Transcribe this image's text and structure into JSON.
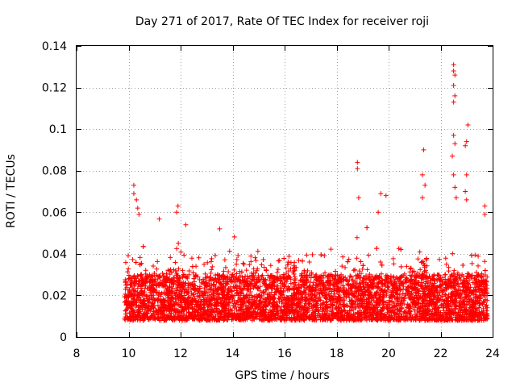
{
  "chart_data": {
    "type": "scatter",
    "title": "Day 271 of 2017, Rate Of TEC Index for receiver roji",
    "xlabel": "GPS time / hours",
    "ylabel": "ROTI / TECUs",
    "xlim": [
      8,
      24
    ],
    "ylim": [
      0,
      0.14
    ],
    "xticks": [
      8,
      10,
      12,
      14,
      16,
      18,
      20,
      22,
      24
    ],
    "xtick_labels": [
      "8",
      "10",
      "12",
      "14",
      "16",
      "18",
      "20",
      "22",
      "24"
    ],
    "yticks": [
      0,
      0.02,
      0.04,
      0.06,
      0.08,
      0.1,
      0.12,
      0.14
    ],
    "ytick_labels": [
      "0",
      "0.02",
      "0.04",
      "0.06",
      "0.08",
      "0.1",
      "0.12",
      "0.14"
    ],
    "grid": true,
    "marker": "+",
    "color": "#ff0000",
    "series": [
      {
        "name": "ROTI",
        "x_range": [
          9.85,
          23.8
        ],
        "typical_range": [
          0.008,
          0.03
        ],
        "notable_points": [
          {
            "x": 10.2,
            "y": 0.073
          },
          {
            "x": 10.2,
            "y": 0.069
          },
          {
            "x": 10.3,
            "y": 0.066
          },
          {
            "x": 10.35,
            "y": 0.062
          },
          {
            "x": 10.4,
            "y": 0.059
          },
          {
            "x": 11.9,
            "y": 0.063
          },
          {
            "x": 11.85,
            "y": 0.06
          },
          {
            "x": 12.2,
            "y": 0.054
          },
          {
            "x": 13.5,
            "y": 0.052
          },
          {
            "x": 18.8,
            "y": 0.084
          },
          {
            "x": 18.8,
            "y": 0.081
          },
          {
            "x": 18.85,
            "y": 0.067
          },
          {
            "x": 19.7,
            "y": 0.069
          },
          {
            "x": 19.9,
            "y": 0.068
          },
          {
            "x": 19.6,
            "y": 0.06
          },
          {
            "x": 21.35,
            "y": 0.09
          },
          {
            "x": 21.3,
            "y": 0.078
          },
          {
            "x": 21.4,
            "y": 0.073
          },
          {
            "x": 21.3,
            "y": 0.067
          },
          {
            "x": 22.5,
            "y": 0.131
          },
          {
            "x": 22.5,
            "y": 0.128
          },
          {
            "x": 22.55,
            "y": 0.126
          },
          {
            "x": 22.5,
            "y": 0.121
          },
          {
            "x": 22.55,
            "y": 0.116
          },
          {
            "x": 22.5,
            "y": 0.113
          },
          {
            "x": 22.5,
            "y": 0.097
          },
          {
            "x": 22.55,
            "y": 0.093
          },
          {
            "x": 22.45,
            "y": 0.087
          },
          {
            "x": 22.5,
            "y": 0.078
          },
          {
            "x": 22.55,
            "y": 0.072
          },
          {
            "x": 22.6,
            "y": 0.067
          },
          {
            "x": 23.05,
            "y": 0.102
          },
          {
            "x": 23.0,
            "y": 0.094
          },
          {
            "x": 22.95,
            "y": 0.092
          },
          {
            "x": 23.0,
            "y": 0.078
          },
          {
            "x": 22.95,
            "y": 0.07
          },
          {
            "x": 23.0,
            "y": 0.066
          },
          {
            "x": 23.7,
            "y": 0.063
          },
          {
            "x": 23.7,
            "y": 0.059
          }
        ]
      }
    ]
  }
}
